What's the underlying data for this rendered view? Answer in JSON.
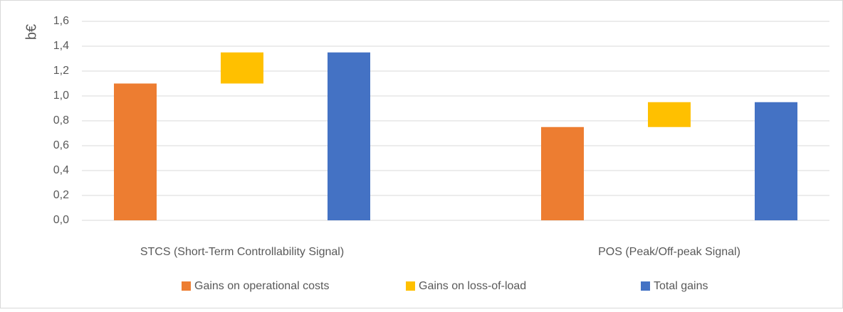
{
  "chart_data": {
    "type": "waterfall",
    "ylabel": "b€",
    "categories": [
      "STCS (Short-Term Controllability Signal)",
      "POS (Peak/Off-peak Signal)"
    ],
    "series": [
      {
        "name": "Gains on operational costs",
        "color": "#ed7d31",
        "values": [
          1.1,
          0.75
        ]
      },
      {
        "name": "Gains on loss-of-load",
        "color": "#ffc000",
        "values": [
          0.25,
          0.2
        ]
      },
      {
        "name": "Total gains",
        "color": "#4472c4",
        "values": [
          1.35,
          0.95
        ]
      }
    ],
    "ylim": [
      0,
      1.6
    ],
    "yticks": [
      {
        "value": 0,
        "label": "0,0"
      },
      {
        "value": 0.2,
        "label": "0,2"
      },
      {
        "value": 0.4,
        "label": "0,4"
      },
      {
        "value": 0.6,
        "label": "0,6"
      },
      {
        "value": 0.8,
        "label": "0,8"
      },
      {
        "value": 1.0,
        "label": "1,0"
      },
      {
        "value": 1.2,
        "label": "1,2"
      },
      {
        "value": 1.4,
        "label": "1,4"
      },
      {
        "value": 1.6,
        "label": "1,6"
      }
    ],
    "grid": true,
    "legend": "bottom"
  }
}
